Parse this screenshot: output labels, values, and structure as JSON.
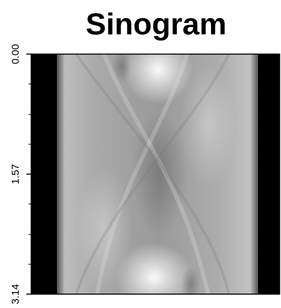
{
  "chart_data": {
    "type": "image",
    "title": "Sinogram",
    "ylim": [
      0,
      3.14
    ],
    "y_inverted": true,
    "yticks": [
      {
        "value": 0,
        "label": "0.00"
      },
      1.57,
      3.14
    ],
    "yminor_ticks": [
      0.39,
      0.79,
      1.18,
      1.96,
      2.36,
      2.75
    ]
  }
}
